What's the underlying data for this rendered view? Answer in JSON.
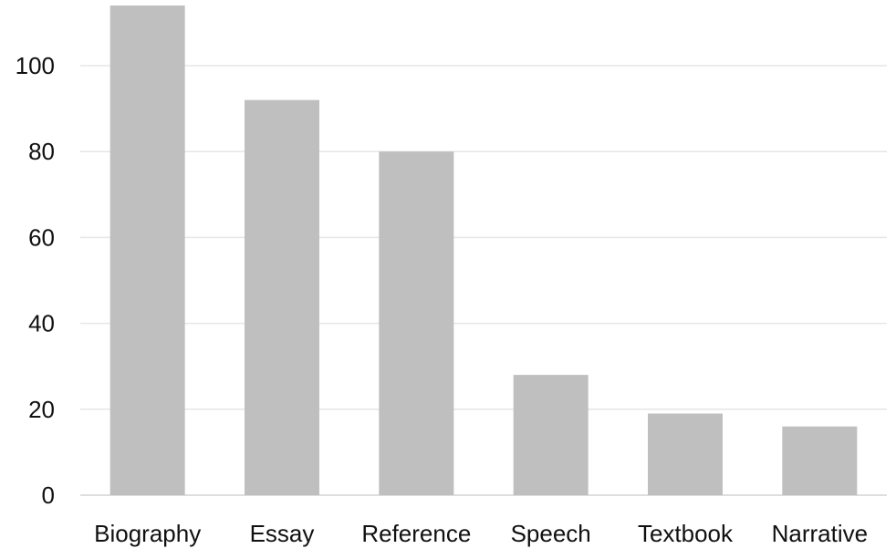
{
  "chart_data": {
    "type": "bar",
    "title": "",
    "xlabel": "",
    "ylabel": "",
    "categories": [
      "Biography",
      "Essay",
      "Reference",
      "Speech",
      "Textbook",
      "Narrative"
    ],
    "values": [
      114,
      92,
      80,
      28,
      19,
      16
    ],
    "ylim": [
      0,
      114
    ],
    "yticks": [
      0,
      20,
      40,
      60,
      80,
      100
    ],
    "grid": true,
    "bar_color": "#bfbfbf",
    "grid_color": "#e6e6e6"
  }
}
